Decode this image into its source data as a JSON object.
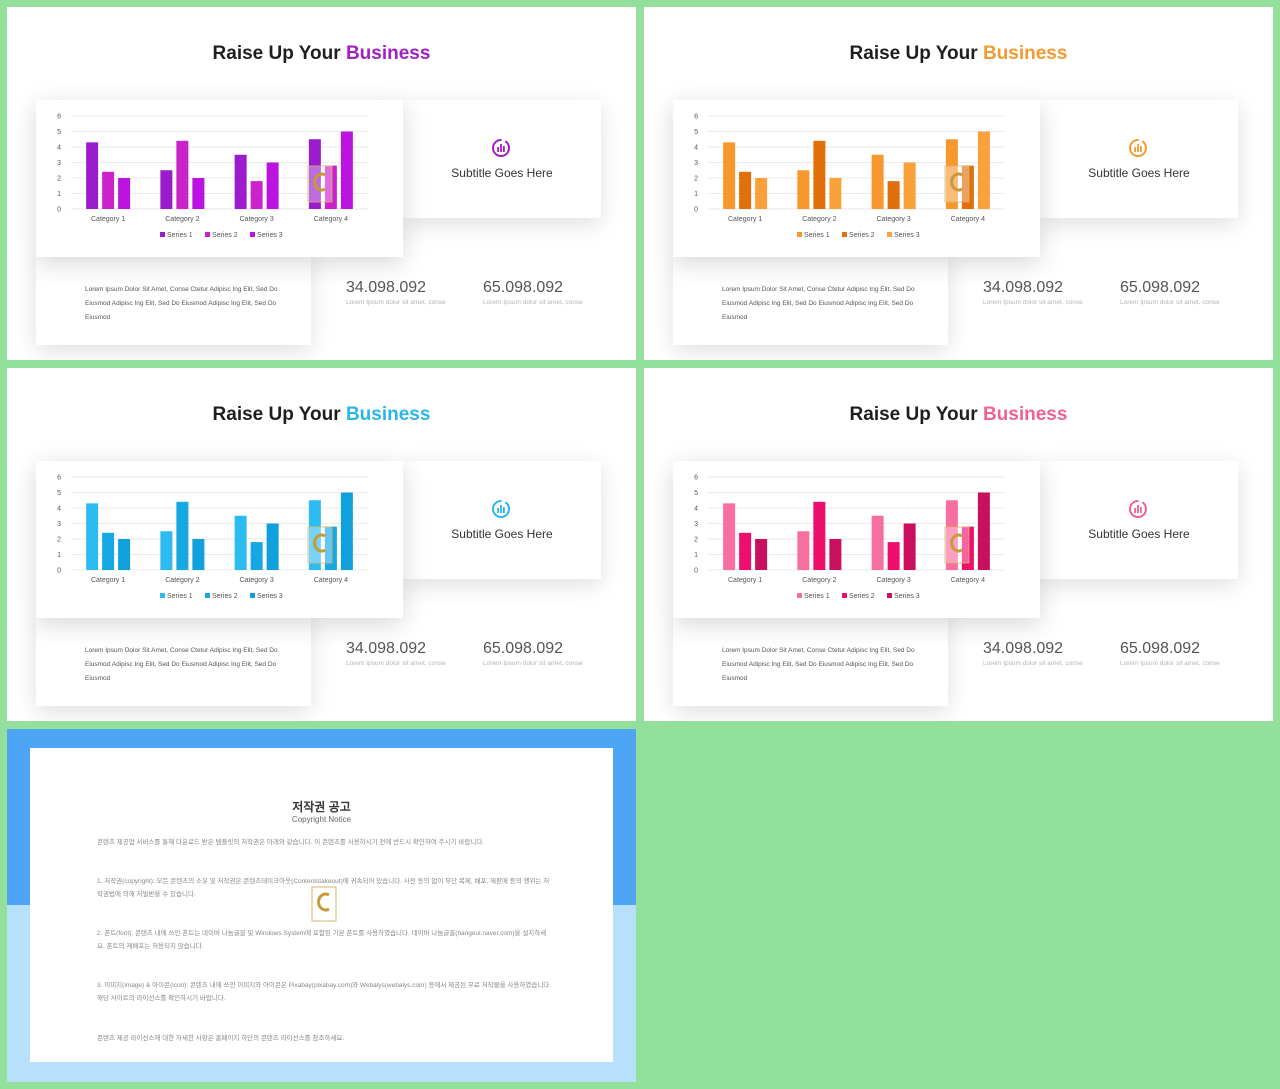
{
  "slides": [
    {
      "title_main": "Raise Up Your",
      "title_accent": "Business",
      "accent_color": "#a020c4",
      "series_colors": [
        "#9a1ccc",
        "#cc22cc",
        "#bb14e0"
      ],
      "icon": "chart-circle-icon",
      "subtitle": "Subtitle  Goes Here",
      "body": "Lorem Ipsum Dolor Sit Amet, Conse Ctetur Adipisc Ing Elit, Sed Do Eiusmod Adipisc Ing Elit, Sed Do Eiusmod Adipisc Ing Elit, Sed Do Eiusmod",
      "stat1": {
        "value": "34.098.092",
        "caption": "Lorem Ipsum dolor sit amet, conse"
      },
      "stat2": {
        "value": "65.098.092",
        "caption": "Lorem Ipsum dolor sit amet, conse"
      }
    },
    {
      "title_main": "Raise Up Your",
      "title_accent": "Business",
      "accent_color": "#f39a30",
      "series_colors": [
        "#f7982e",
        "#e06f0c",
        "#f9a13a"
      ],
      "icon": "chart-circle-icon",
      "subtitle": "Subtitle  Goes Here",
      "body": "Lorem Ipsum Dolor Sit Amet, Conse Ctetur Adipisc Ing Elit, Sed Do Eiusmod Adipisc Ing Elit, Sed Do Eiusmod Adipisc Ing Elit, Sed Do Eiusmod",
      "stat1": {
        "value": "34.098.092",
        "caption": "Lorem Ipsum dolor sit amet, conse"
      },
      "stat2": {
        "value": "65.098.092",
        "caption": "Lorem Ipsum dolor sit amet, conse"
      }
    },
    {
      "title_main": "Raise Up Your",
      "title_accent": "Business",
      "accent_color": "#2bb6e6",
      "series_colors": [
        "#2dbcf0",
        "#16a8e0",
        "#10a0dc"
      ],
      "icon": "chart-circle-icon",
      "subtitle": "Subtitle  Goes Here",
      "body": "Lorem Ipsum Dolor Sit Amet, Conse Ctetur Adipisc Ing Elit, Sed Do Eiusmod Adipisc Ing Elit, Sed Do Eiusmod Adipisc Ing Elit, Sed Do Eiusmod",
      "stat1": {
        "value": "34.098.092",
        "caption": "Lorem Ipsum dolor sit amet, conse"
      },
      "stat2": {
        "value": "65.098.092",
        "caption": "Lorem Ipsum dolor sit amet, conse"
      }
    },
    {
      "title_main": "Raise Up Your",
      "title_accent": "Business",
      "accent_color": "#f06292",
      "series_colors": [
        "#f76fa0",
        "#ee0f6c",
        "#c8105e"
      ],
      "icon": "chart-circle-icon",
      "subtitle": "Subtitle  Goes Here",
      "body": "Lorem Ipsum Dolor Sit Amet, Conse Ctetur Adipisc Ing Elit, Sed Do Eiusmod Adipisc Ing Elit, Sed Do Eiusmod Adipisc Ing Elit, Sed Do Eiusmod",
      "stat1": {
        "value": "34.098.092",
        "caption": "Lorem Ipsum dolor sit amet, conse"
      },
      "stat2": {
        "value": "65.098.092",
        "caption": "Lorem Ipsum dolor sit amet, conse"
      }
    }
  ],
  "chart_data": [
    {
      "type": "bar",
      "categories": [
        "Category 1",
        "Category 2",
        "Category 3",
        "Category 4"
      ],
      "series": [
        {
          "name": "Series 1",
          "values": [
            4.3,
            2.5,
            3.5,
            4.5
          ]
        },
        {
          "name": "Series 2",
          "values": [
            2.4,
            4.4,
            1.8,
            2.8
          ]
        },
        {
          "name": "Series 3",
          "values": [
            2,
            2,
            3,
            5
          ]
        }
      ],
      "ylim": [
        0,
        6
      ],
      "yticks": [
        0,
        1,
        2,
        3,
        4,
        5,
        6
      ],
      "grid": true,
      "legend": "bottom"
    },
    {
      "type": "bar",
      "categories": [
        "Category 1",
        "Category 2",
        "Category 3",
        "Category 4"
      ],
      "series": [
        {
          "name": "Series 1",
          "values": [
            4.3,
            2.5,
            3.5,
            4.5
          ]
        },
        {
          "name": "Series 2",
          "values": [
            2.4,
            4.4,
            1.8,
            2.8
          ]
        },
        {
          "name": "Series 3",
          "values": [
            2,
            2,
            3,
            5
          ]
        }
      ],
      "ylim": [
        0,
        6
      ],
      "yticks": [
        0,
        1,
        2,
        3,
        4,
        5,
        6
      ],
      "grid": true,
      "legend": "bottom"
    },
    {
      "type": "bar",
      "categories": [
        "Category 1",
        "Category 2",
        "Category 3",
        "Category 4"
      ],
      "series": [
        {
          "name": "Series 1",
          "values": [
            4.3,
            2.5,
            3.5,
            4.5
          ]
        },
        {
          "name": "Series 2",
          "values": [
            2.4,
            4.4,
            1.8,
            2.8
          ]
        },
        {
          "name": "Series 3",
          "values": [
            2,
            2,
            3,
            5
          ]
        }
      ],
      "ylim": [
        0,
        6
      ],
      "yticks": [
        0,
        1,
        2,
        3,
        4,
        5,
        6
      ],
      "grid": true,
      "legend": "bottom"
    },
    {
      "type": "bar",
      "categories": [
        "Category 1",
        "Category 2",
        "Category 3",
        "Category 4"
      ],
      "series": [
        {
          "name": "Series 1",
          "values": [
            4.3,
            2.5,
            3.5,
            4.5
          ]
        },
        {
          "name": "Series 2",
          "values": [
            2.4,
            4.4,
            1.8,
            2.8
          ]
        },
        {
          "name": "Series 3",
          "values": [
            2,
            2,
            3,
            5
          ]
        }
      ],
      "ylim": [
        0,
        6
      ],
      "yticks": [
        0,
        1,
        2,
        3,
        4,
        5,
        6
      ],
      "grid": true,
      "legend": "bottom"
    }
  ],
  "notice": {
    "title": "저작권 공고",
    "subtitle": "Copyright Notice",
    "paragraphs": [
      "콘텐츠 제공업 서비스를 통해 다운로드 받은 템플릿의 저작권은 아래와 같습니다. 이 콘텐츠를 사용하시기 전에 반드시 확인하여 주시기 바랍니다.",
      "1. 저작권(copyright): 모든 콘텐츠의 소유 및 저작권은 콘텐츠테이크아웃(Contentstakeout)에 귀속되어 있습니다. 사전 동의 없이 무단 복제, 배포, 재판매 등의 행위는 저작권법에 의해 처벌받을 수 있습니다.",
      "2. 폰트(font): 콘텐츠 내에 쓰인 폰트는 네이버 나눔글꼴 및 Windows System에 포함된 기본 폰트를 사용하였습니다. 네이버 나눔글꼴(hangeul.naver.com)을 설치하세요. 폰트의 재배포는 허용되지 않습니다.",
      "3. 이미지(image) & 아이콘(icon): 콘텐츠 내에 쓰인 이미지와 아이콘은 Pixabay(pixabay.com)와 Webalys(webalys.com) 등에서 제공된 무료 저작물을 사용하였습니다. 해당 사이트의 라이선스를 확인하시기 바랍니다.",
      "콘텐츠 제공 라이선스에 대한 자세한 사항은 홈페이지 하단의 콘텐츠 라이선스를 참조하세요."
    ]
  }
}
